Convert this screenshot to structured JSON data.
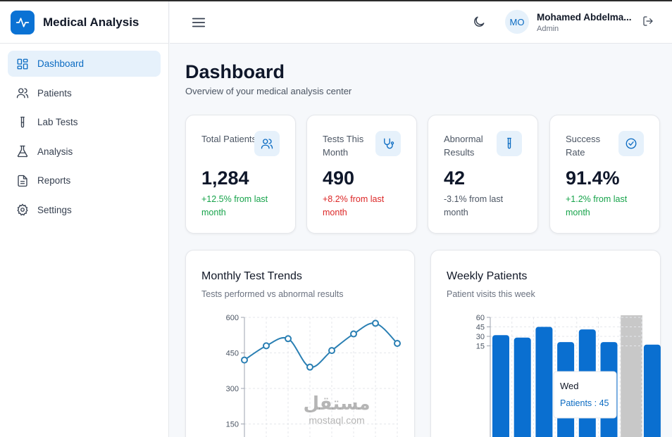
{
  "brand": {
    "title": "Medical Analysis",
    "logo_icon": "pulse-icon",
    "accent": "#0a72d4"
  },
  "sidebar": {
    "items": [
      {
        "label": "Dashboard",
        "icon": "dashboard-icon",
        "active": true
      },
      {
        "label": "Patients",
        "icon": "users-icon"
      },
      {
        "label": "Lab Tests",
        "icon": "test-tube-icon"
      },
      {
        "label": "Analysis",
        "icon": "flask-icon"
      },
      {
        "label": "Reports",
        "icon": "document-icon"
      },
      {
        "label": "Settings",
        "icon": "gear-icon"
      }
    ]
  },
  "header": {
    "user": {
      "initials": "MO",
      "name": "Mohamed Abdelma...",
      "role": "Admin"
    }
  },
  "page": {
    "title": "Dashboard",
    "subtitle": "Overview of your medical analysis center"
  },
  "stats": [
    {
      "label": "Total Patients",
      "value": "1,284",
      "change": "+12.5% from last month",
      "change_color": "#16a34a",
      "icon": "users-icon"
    },
    {
      "label": "Tests This Month",
      "value": "490",
      "change": "+8.2% from last month",
      "change_color": "#dc2626",
      "icon": "stethoscope-icon"
    },
    {
      "label": "Abnormal Results",
      "value": "42",
      "change": "-3.1% from last month",
      "change_color": "#4b5563",
      "icon": "test-tube-icon"
    },
    {
      "label": "Success Rate",
      "value": "91.4%",
      "change": "+1.2% from last month",
      "change_color": "#16a34a",
      "icon": "check-circle-icon"
    }
  ],
  "charts": {
    "monthly": {
      "title": "Monthly Test Trends",
      "subtitle": "Tests performed vs abnormal results"
    },
    "weekly": {
      "title": "Weekly Patients",
      "subtitle": "Patient visits this week"
    }
  },
  "chart_data": [
    {
      "type": "line",
      "title": "Monthly Test Trends",
      "subtitle": "Tests performed vs abnormal results",
      "y_ticks": [
        150,
        300,
        450,
        600
      ],
      "ylim": [
        0,
        600
      ],
      "grid": true,
      "color": "#2a7fb3",
      "series": [
        {
          "values": [
            420,
            480,
            510,
            390,
            460,
            530,
            575,
            490
          ]
        }
      ]
    },
    {
      "type": "bar",
      "title": "Weekly Patients",
      "subtitle": "Patient visits this week",
      "y_ticks": [
        15,
        30,
        45,
        60
      ],
      "ylim": [
        0,
        60
      ],
      "grid": true,
      "color": "#0a6fd0",
      "values": [
        32,
        28,
        45,
        21,
        41,
        21,
        60,
        17
      ],
      "highlight_index": 6,
      "tooltip": {
        "day": "Wed",
        "text": "Patients : 45"
      }
    }
  ],
  "watermark": {
    "arabic": "مستقل",
    "latin": "mostaql.com"
  }
}
